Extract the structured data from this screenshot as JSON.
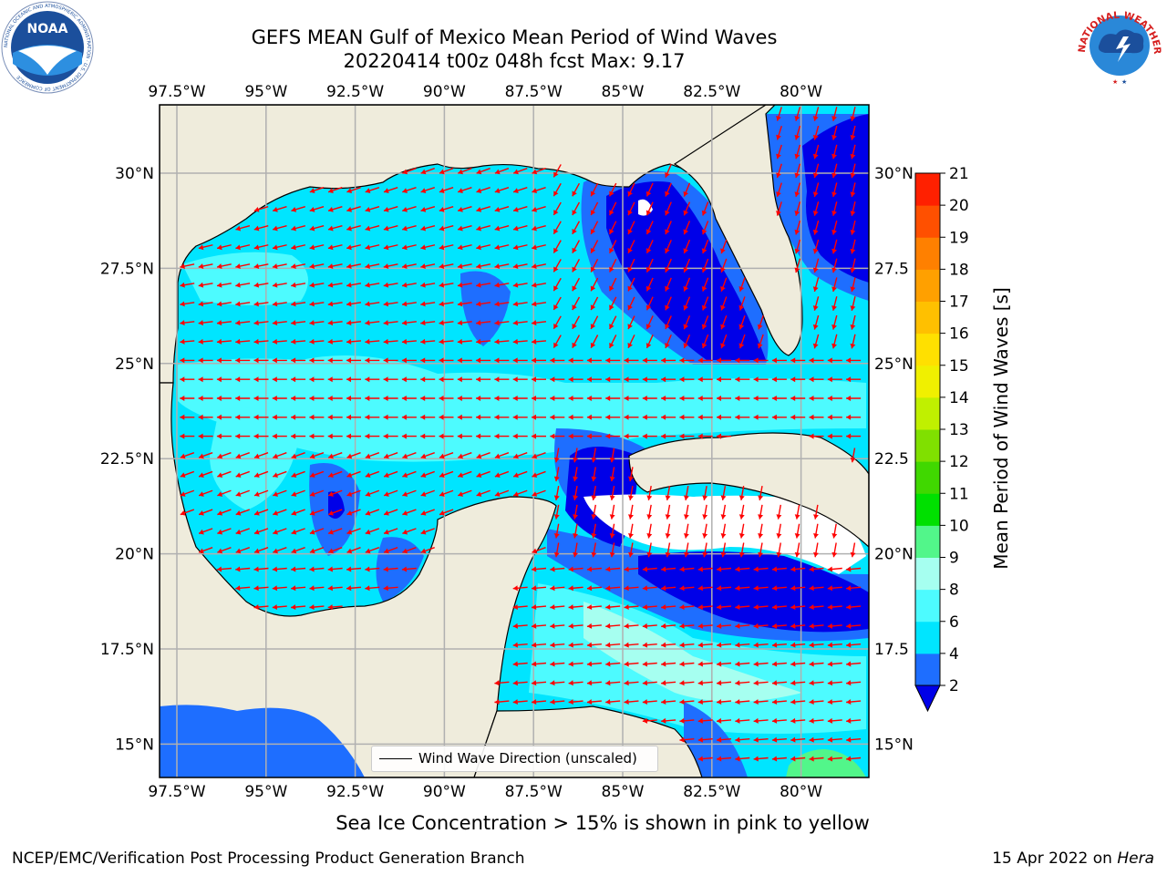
{
  "title": {
    "line1": "GEFS MEAN Gulf of Mexico Mean Period of Wind Waves",
    "line2": "20220414 t00z 048h fcst   Max: 9.17"
  },
  "logos": {
    "left": {
      "name": "noaa-logo",
      "text": "NOAA",
      "ring_text": "NATIONAL OCEANIC AND ATMOSPHERIC ADMINISTRATION · U.S. DEPARTMENT OF COMMERCE"
    },
    "right": {
      "name": "nws-logo",
      "ring_text": "NATIONAL WEATHER SERVICE"
    }
  },
  "map": {
    "lon_labels": [
      "97.5°W",
      "95°W",
      "92.5°W",
      "90°W",
      "87.5°W",
      "85°W",
      "82.5°W",
      "80°W"
    ],
    "lat_labels": [
      "30°N",
      "27.5°N",
      "25°N",
      "22.5°N",
      "20°N",
      "17.5°N",
      "15°N"
    ],
    "right_lat_labels": [
      "30°N",
      "27.5",
      "25°N",
      "22.5",
      "20°N",
      "17.5",
      "15°N"
    ],
    "colors": {
      "land": "#efecdc",
      "c2_4": "#1e6eff",
      "c4_6": "#00e5ff",
      "c6_8": "#4dfbff",
      "c8_9": "#a6fff0",
      "c0_2": "#0000e8",
      "c9_10": "#52f68a",
      "arrow": "#ff0000",
      "grid": "#b0b0b0"
    },
    "legend": "Wind Wave Direction (unscaled)"
  },
  "colorbar": {
    "label": "Mean Period of Wind Waves [s]",
    "ticks": [
      "2",
      "4",
      "6",
      "8",
      "9",
      "10",
      "11",
      "12",
      "13",
      "14",
      "15",
      "16",
      "17",
      "18",
      "19",
      "20",
      "21"
    ],
    "colors": [
      "#1e6eff",
      "#00e5ff",
      "#4dfbff",
      "#a6fff0",
      "#52f68a",
      "#00e000",
      "#40d800",
      "#80e000",
      "#c0f000",
      "#f0f000",
      "#ffe000",
      "#ffc000",
      "#ffa000",
      "#ff8000",
      "#ff5000",
      "#ff2000"
    ],
    "extend_color": "#0000e8"
  },
  "caption": "Sea Ice Concentration > 15% is shown in pink to yellow",
  "footer": {
    "left": "NCEP/EMC/Verification Post Processing Product Generation Branch",
    "right_prefix": "15 Apr 2022 on ",
    "right_host": "Hera"
  }
}
